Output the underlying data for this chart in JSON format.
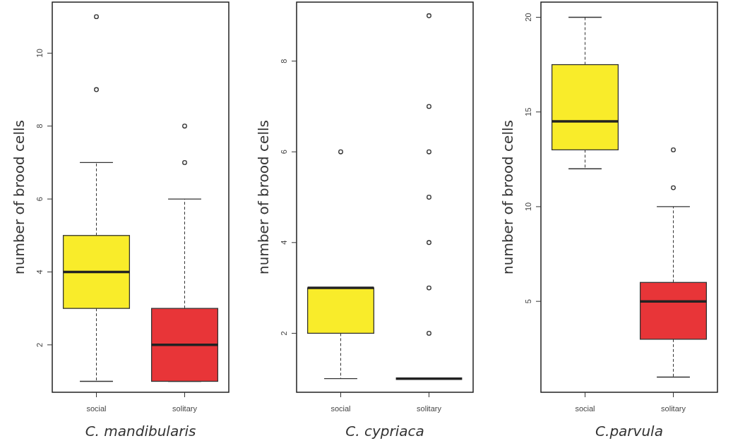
{
  "chart_data": [
    {
      "type": "box",
      "xlabel": "C. mandibularis",
      "ylabel": "number of brood cells",
      "categories": [
        "social",
        "solitary"
      ],
      "colors": [
        "#f9ec2a",
        "#e83538"
      ],
      "ylim": [
        0.7,
        11.4
      ],
      "yticks": [
        2,
        4,
        6,
        8,
        10
      ],
      "grid": false,
      "boxes": [
        {
          "low": 1,
          "q1": 3,
          "median": 4,
          "q3": 5,
          "high": 7,
          "outliers": [
            9,
            11
          ]
        },
        {
          "low": 1,
          "q1": 1,
          "median": 2,
          "q3": 3,
          "high": 6,
          "outliers": [
            7,
            8
          ]
        }
      ]
    },
    {
      "type": "box",
      "xlabel": "C. cypriaca",
      "ylabel": "number of brood cells",
      "categories": [
        "social",
        "solitary"
      ],
      "colors": [
        "#f9ec2a",
        "#222222"
      ],
      "ylim": [
        0.7,
        9.3
      ],
      "yticks": [
        2,
        4,
        6,
        8
      ],
      "grid": false,
      "boxes": [
        {
          "low": 1,
          "q1": 2,
          "median": 3,
          "q3": 3,
          "high": 3,
          "outliers": [
            6
          ]
        },
        {
          "low": 1,
          "q1": 1,
          "median": 1,
          "q3": 1,
          "high": 1,
          "outliers": [
            2,
            3,
            4,
            5,
            6,
            7,
            9
          ]
        }
      ]
    },
    {
      "type": "box",
      "xlabel": "C.parvula",
      "ylabel": "number of brood cells",
      "categories": [
        "social",
        "solitary"
      ],
      "colors": [
        "#f9ec2a",
        "#e83538"
      ],
      "ylim": [
        0.2,
        20.8
      ],
      "yticks": [
        5,
        10,
        15,
        20
      ],
      "grid": false,
      "boxes": [
        {
          "low": 12,
          "q1": 13,
          "median": 14.5,
          "q3": 17.5,
          "high": 20
        },
        {
          "low": 1,
          "q1": 3,
          "median": 5,
          "q3": 6,
          "high": 10,
          "outliers": [
            11,
            13
          ]
        }
      ]
    }
  ]
}
